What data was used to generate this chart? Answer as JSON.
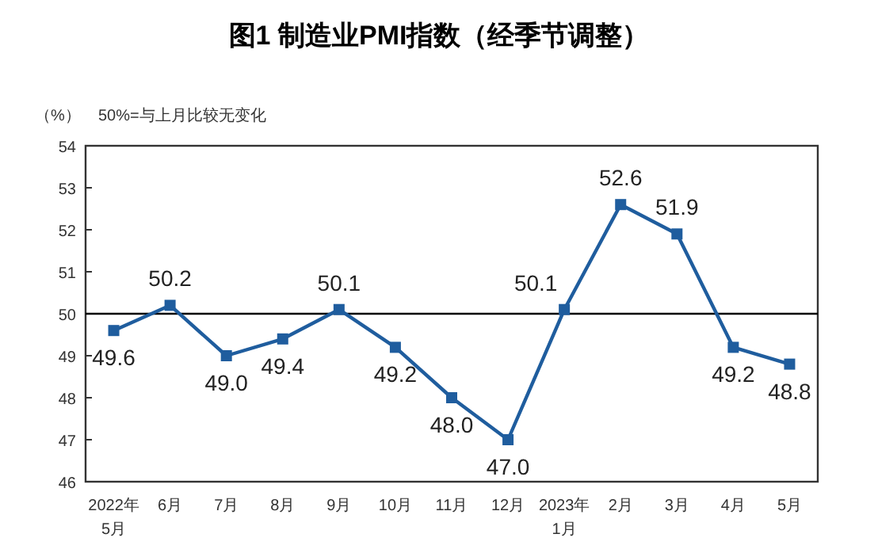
{
  "chart_data": {
    "type": "line",
    "title": "图1 制造业PMI指数（经季节调整）",
    "ylabel": "（%）",
    "annotations": [
      "50%=与上月比较无变化"
    ],
    "categories": [
      "2022年\n5月",
      "6月",
      "7月",
      "8月",
      "9月",
      "10月",
      "11月",
      "12月",
      "2023年\n1月",
      "2月",
      "3月",
      "4月",
      "5月"
    ],
    "series": [
      {
        "color": "#1f5d9e",
        "values": [
          49.6,
          50.2,
          49.0,
          49.4,
          50.1,
          49.2,
          48.0,
          47.0,
          50.1,
          52.6,
          51.9,
          49.2,
          48.8
        ]
      }
    ],
    "ylim": [
      46,
      54
    ],
    "yticks": [
      46,
      47,
      48,
      49,
      50,
      51,
      52,
      53,
      54
    ],
    "ref_lines": [
      {
        "axis": "y",
        "value": 50,
        "label": null,
        "color": "#000000"
      }
    ],
    "value_labels": [
      "49.6",
      "50.2",
      "49.0",
      "49.4",
      "50.1",
      "49.2",
      "48.0",
      "47.0",
      "50.1",
      "52.6",
      "51.9",
      "49.2",
      "48.8"
    ],
    "marker": "square",
    "line_style": "solid",
    "grid": false
  }
}
